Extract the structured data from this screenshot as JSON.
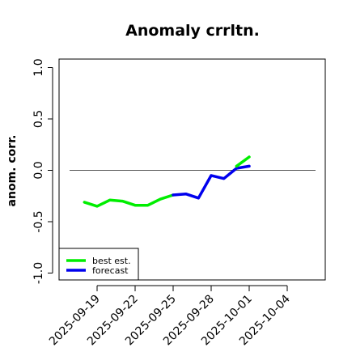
{
  "chart_data": {
    "type": "line",
    "title": "Anomaly crrltn.",
    "xlabel": "",
    "ylabel": "anom. corr.",
    "ylim": [
      -1.0,
      1.0
    ],
    "xlim": [
      "2025-09-16",
      "2025-10-07"
    ],
    "yticks": [
      "-1.0",
      "-0.5",
      "0.0",
      "0.5",
      "1.0"
    ],
    "xticks": [
      {
        "date": "2025-09-19",
        "label": "2025-09-19",
        "color": "#000000"
      },
      {
        "date": "2025-09-22",
        "label": "2025-09-22",
        "color": "#000000"
      },
      {
        "date": "2025-09-25",
        "label": "2025-09-25",
        "color": "#228B22"
      },
      {
        "date": "2025-09-28",
        "label": "2025-09-28",
        "color": "#000000"
      },
      {
        "date": "2025-10-01",
        "label": "2025-10-01",
        "color": "#000000"
      },
      {
        "date": "2025-10-04",
        "label": "2025-10-04",
        "color": "#000000"
      }
    ],
    "reference_line": 0.0,
    "grid": false,
    "legend_position": "bottom-left",
    "series": [
      {
        "name": "best est.",
        "color": "#00ee00",
        "x": [
          "2025-09-18",
          "2025-09-19",
          "2025-09-20",
          "2025-09-21",
          "2025-09-22",
          "2025-09-23",
          "2025-09-24",
          "2025-09-25"
        ],
        "y": [
          -0.31,
          -0.35,
          -0.29,
          -0.3,
          -0.34,
          -0.34,
          -0.28,
          -0.24
        ]
      },
      {
        "name": "forecast",
        "color": "#0000ee",
        "x": [
          "2025-09-25",
          "2025-09-26",
          "2025-09-27",
          "2025-09-28",
          "2025-09-29",
          "2025-09-30",
          "2025-10-01"
        ],
        "y": [
          -0.24,
          -0.23,
          -0.27,
          -0.05,
          -0.08,
          0.02,
          0.04
        ]
      },
      {
        "name": "",
        "color": "#00ee00",
        "x": [
          "2025-09-30",
          "2025-10-01"
        ],
        "y": [
          0.04,
          0.13
        ]
      }
    ]
  }
}
